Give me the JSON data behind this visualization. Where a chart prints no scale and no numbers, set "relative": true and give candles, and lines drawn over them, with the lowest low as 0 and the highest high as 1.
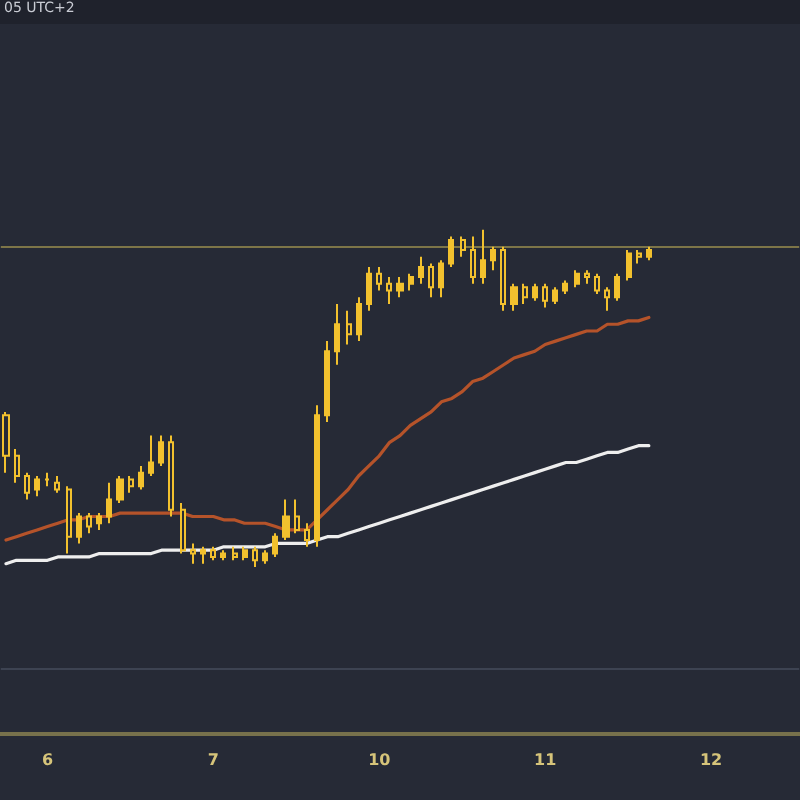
{
  "chart_data": {
    "type": "candlestick",
    "relative": true,
    "tick_labels": "x",
    "grid": false,
    "marker": "none",
    "color": "#f2c12e",
    "annotations": [
      "05 UTC+2"
    ],
    "categories": [
      null,
      null,
      null,
      null,
      "6",
      null,
      null,
      null,
      null,
      null,
      null,
      null,
      null,
      null,
      null,
      null,
      null,
      null,
      null,
      null,
      "7",
      null,
      null,
      null,
      null,
      null,
      null,
      null,
      null,
      null,
      null,
      null,
      null,
      null,
      null,
      null,
      "10",
      null,
      null,
      null,
      null,
      null,
      null,
      null,
      null,
      null,
      null,
      null,
      null,
      null,
      null,
      null,
      "11",
      null,
      null,
      null,
      null,
      null,
      null,
      null,
      null,
      null,
      null,
      null,
      null,
      null,
      null,
      null,
      "12",
      null,
      null,
      null,
      null,
      null,
      null,
      null,
      null
    ],
    "ohlc": [
      [
        0.45,
        0.46,
        0.28,
        0.33
      ],
      [
        0.33,
        0.35,
        0.25,
        0.27
      ],
      [
        0.27,
        0.28,
        0.2,
        0.22
      ],
      [
        0.23,
        0.27,
        0.21,
        0.26
      ],
      [
        0.26,
        0.28,
        0.24,
        0.26
      ],
      [
        0.25,
        0.27,
        0.22,
        0.23
      ],
      [
        0.23,
        0.24,
        0.04,
        0.09
      ],
      [
        0.09,
        0.16,
        0.07,
        0.15
      ],
      [
        0.15,
        0.16,
        0.1,
        0.12
      ],
      [
        0.13,
        0.16,
        0.11,
        0.15
      ],
      [
        0.15,
        0.25,
        0.13,
        0.2
      ],
      [
        0.2,
        0.27,
        0.19,
        0.26
      ],
      [
        0.26,
        0.27,
        0.22,
        0.24
      ],
      [
        0.24,
        0.3,
        0.23,
        0.28
      ],
      [
        0.28,
        0.39,
        0.27,
        0.31
      ],
      [
        0.31,
        0.39,
        0.3,
        0.37
      ],
      [
        0.37,
        0.39,
        0.15,
        0.17
      ],
      [
        0.17,
        0.19,
        0.04,
        0.05
      ],
      [
        0.05,
        0.07,
        0.01,
        0.04
      ],
      [
        0.04,
        0.06,
        0.01,
        0.05
      ],
      [
        0.05,
        0.06,
        0.02,
        0.03
      ],
      [
        0.03,
        0.05,
        0.02,
        0.04
      ],
      [
        0.04,
        0.06,
        0.02,
        0.03
      ],
      [
        0.03,
        0.06,
        0.02,
        0.05
      ],
      [
        0.05,
        0.06,
        0.0,
        0.02
      ],
      [
        0.02,
        0.05,
        0.01,
        0.04
      ],
      [
        0.04,
        0.1,
        0.03,
        0.09
      ],
      [
        0.09,
        0.2,
        0.08,
        0.15
      ],
      [
        0.15,
        0.2,
        0.1,
        0.11
      ],
      [
        0.11,
        0.13,
        0.06,
        0.08
      ],
      [
        0.08,
        0.48,
        0.06,
        0.45
      ],
      [
        0.45,
        0.67,
        0.43,
        0.64
      ],
      [
        0.64,
        0.78,
        0.6,
        0.72
      ],
      [
        0.72,
        0.76,
        0.66,
        0.69
      ],
      [
        0.69,
        0.8,
        0.67,
        0.78
      ],
      [
        0.78,
        0.89,
        0.76,
        0.87
      ],
      [
        0.87,
        0.89,
        0.82,
        0.84
      ],
      [
        0.84,
        0.86,
        0.78,
        0.82
      ],
      [
        0.82,
        0.86,
        0.8,
        0.84
      ],
      [
        0.84,
        0.87,
        0.82,
        0.86
      ],
      [
        0.86,
        0.92,
        0.84,
        0.89
      ],
      [
        0.89,
        0.9,
        0.8,
        0.83
      ],
      [
        0.83,
        0.91,
        0.8,
        0.9
      ],
      [
        0.9,
        0.98,
        0.89,
        0.97
      ],
      [
        0.97,
        0.98,
        0.92,
        0.94
      ],
      [
        0.94,
        0.98,
        0.84,
        0.86
      ],
      [
        0.86,
        1.0,
        0.84,
        0.91
      ],
      [
        0.91,
        0.95,
        0.88,
        0.94
      ],
      [
        0.94,
        0.95,
        0.76,
        0.78
      ],
      [
        0.78,
        0.84,
        0.76,
        0.83
      ],
      [
        0.83,
        0.84,
        0.78,
        0.8
      ],
      [
        0.8,
        0.84,
        0.79,
        0.83
      ],
      [
        0.83,
        0.84,
        0.77,
        0.79
      ],
      [
        0.79,
        0.83,
        0.78,
        0.82
      ],
      [
        0.82,
        0.85,
        0.81,
        0.84
      ],
      [
        0.84,
        0.88,
        0.83,
        0.87
      ],
      [
        0.87,
        0.88,
        0.84,
        0.86
      ],
      [
        0.86,
        0.87,
        0.81,
        0.82
      ],
      [
        0.82,
        0.83,
        0.76,
        0.8
      ],
      [
        0.8,
        0.87,
        0.79,
        0.86
      ],
      [
        0.86,
        0.94,
        0.85,
        0.93
      ],
      [
        0.93,
        0.94,
        0.9,
        0.92
      ],
      [
        0.92,
        0.95,
        0.91,
        0.94
      ],
      null,
      null,
      null,
      null,
      null,
      null,
      null,
      null,
      null,
      null,
      null,
      null,
      null,
      null
    ],
    "series": [
      {
        "type": "line",
        "color": "#b5532a",
        "values": [
          0.08,
          0.09,
          0.1,
          0.11,
          0.12,
          0.13,
          0.14,
          0.14,
          0.15,
          0.15,
          0.15,
          0.16,
          0.16,
          0.16,
          0.16,
          0.16,
          0.16,
          0.16,
          0.15,
          0.15,
          0.15,
          0.14,
          0.14,
          0.13,
          0.13,
          0.13,
          0.12,
          0.11,
          0.11,
          0.11,
          0.14,
          0.17,
          0.2,
          0.23,
          0.27,
          0.3,
          0.33,
          0.37,
          0.39,
          0.42,
          0.44,
          0.46,
          0.49,
          0.5,
          0.52,
          0.55,
          0.56,
          0.58,
          0.6,
          0.62,
          0.63,
          0.64,
          0.66,
          0.67,
          0.68,
          0.69,
          0.7,
          0.7,
          0.72,
          0.72,
          0.73,
          0.73,
          0.74,
          null,
          null,
          null,
          null,
          null,
          null,
          null,
          null,
          null,
          null,
          null,
          null,
          null,
          null
        ]
      },
      {
        "type": "line",
        "color": "#eeeeee",
        "values": [
          0.01,
          0.02,
          0.02,
          0.02,
          0.02,
          0.03,
          0.03,
          0.03,
          0.03,
          0.04,
          0.04,
          0.04,
          0.04,
          0.04,
          0.04,
          0.05,
          0.05,
          0.05,
          0.05,
          0.05,
          0.05,
          0.06,
          0.06,
          0.06,
          0.06,
          0.06,
          0.07,
          0.07,
          0.07,
          0.07,
          0.08,
          0.09,
          0.09,
          0.1,
          0.11,
          0.12,
          0.13,
          0.14,
          0.15,
          0.16,
          0.17,
          0.18,
          0.19,
          0.2,
          0.21,
          0.22,
          0.23,
          0.24,
          0.25,
          0.26,
          0.27,
          0.28,
          0.29,
          0.3,
          0.31,
          0.31,
          0.32,
          0.33,
          0.34,
          0.34,
          0.35,
          0.36,
          0.36,
          null,
          null,
          null,
          null,
          null,
          null,
          null,
          null,
          null,
          null,
          null,
          null,
          null,
          null
        ]
      }
    ],
    "ref_lines": [
      {
        "axis": "y",
        "value": 0.95,
        "color": "#7d7548"
      },
      {
        "axis": "y",
        "value": -0.3,
        "color": "#3d4352"
      }
    ]
  }
}
